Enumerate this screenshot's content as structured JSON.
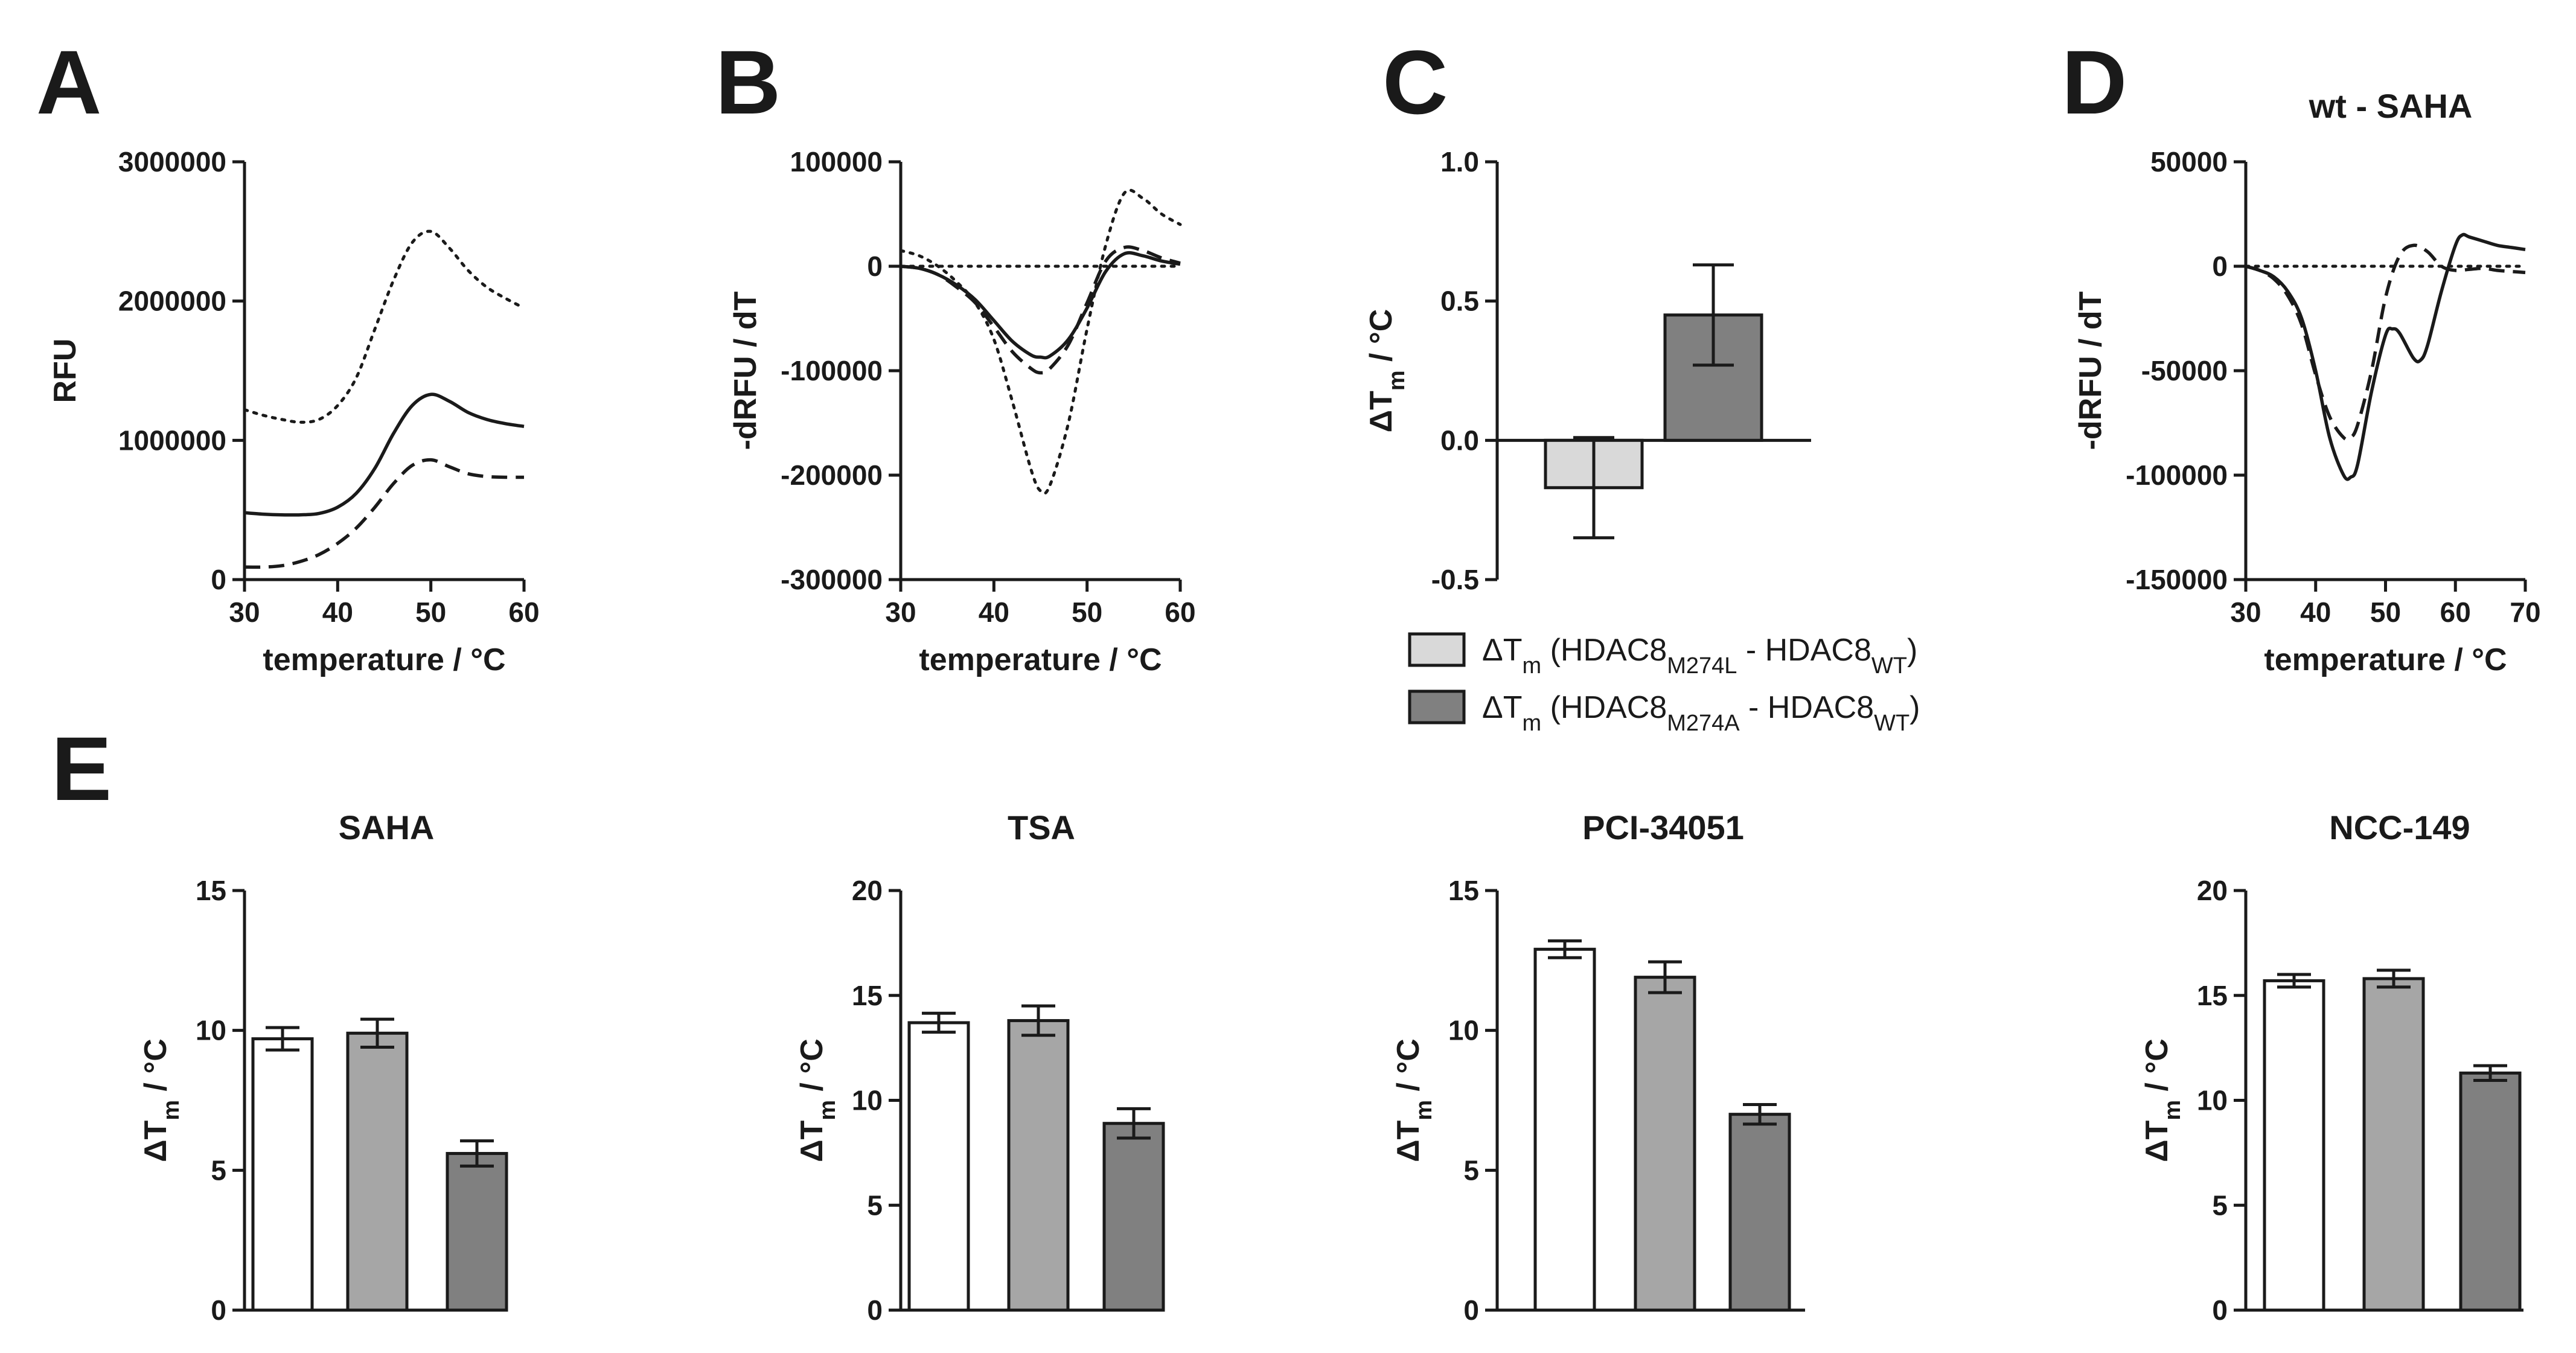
{
  "panels": {
    "A": "A",
    "B": "B",
    "C": "C",
    "D": "D",
    "E": "E"
  },
  "colors": {
    "axis": "#1a1a1a",
    "bar_light": "#d9d9d9",
    "bar_mid": "#a6a6a6",
    "bar_dark": "#808080",
    "bar_white": "#ffffff"
  },
  "chart_data": [
    {
      "id": "A",
      "type": "line",
      "xlabel": "temperature  / °C",
      "ylabel": "RFU",
      "xlim": [
        30,
        60
      ],
      "ylim": [
        0,
        3000000
      ],
      "xticks": [
        "30",
        "40",
        "50",
        "60"
      ],
      "yticks": [
        "0",
        "1000000",
        "2000000",
        "3000000"
      ],
      "series": [
        {
          "style": "dotted",
          "x": [
            30,
            32,
            34,
            36,
            38,
            40,
            42,
            44,
            46,
            48,
            50,
            52,
            54,
            56,
            58,
            60
          ],
          "y": [
            1220000,
            1180000,
            1150000,
            1130000,
            1150000,
            1250000,
            1450000,
            1800000,
            2150000,
            2420000,
            2500000,
            2380000,
            2220000,
            2100000,
            2020000,
            1950000
          ]
        },
        {
          "style": "solid",
          "x": [
            30,
            32,
            34,
            36,
            38,
            40,
            42,
            44,
            46,
            48,
            50,
            52,
            54,
            56,
            58,
            60
          ],
          "y": [
            480000,
            470000,
            465000,
            465000,
            475000,
            520000,
            620000,
            800000,
            1050000,
            1250000,
            1330000,
            1280000,
            1200000,
            1150000,
            1120000,
            1100000
          ]
        },
        {
          "style": "dashed",
          "x": [
            30,
            32,
            34,
            36,
            38,
            40,
            42,
            44,
            46,
            48,
            50,
            52,
            54,
            56,
            58,
            60
          ],
          "y": [
            90000,
            90000,
            100000,
            130000,
            180000,
            260000,
            370000,
            520000,
            690000,
            820000,
            860000,
            810000,
            760000,
            740000,
            735000,
            735000
          ]
        }
      ]
    },
    {
      "id": "B",
      "type": "line",
      "xlabel": "temperature / °C",
      "ylabel": "-dRFU / dT",
      "xlim": [
        30,
        60
      ],
      "ylim": [
        -300000,
        100000
      ],
      "xticks": [
        "30",
        "40",
        "50",
        "60"
      ],
      "yticks": [
        "-300000",
        "-200000",
        "-100000",
        "0",
        "100000"
      ],
      "series": [
        {
          "style": "dotted-ref",
          "x": [
            30,
            60
          ],
          "y": [
            0,
            0
          ]
        },
        {
          "style": "dotted",
          "x": [
            30,
            32,
            34,
            36,
            38,
            40,
            42,
            44,
            45,
            46,
            48,
            50,
            52,
            54,
            56,
            58,
            60
          ],
          "y": [
            15000,
            10000,
            0,
            -15000,
            -35000,
            -70000,
            -130000,
            -195000,
            -215000,
            -210000,
            -150000,
            -60000,
            20000,
            70000,
            65000,
            50000,
            40000
          ]
        },
        {
          "style": "solid",
          "x": [
            30,
            32,
            34,
            36,
            38,
            40,
            42,
            44,
            45,
            46,
            48,
            50,
            52,
            54,
            56,
            58,
            60
          ],
          "y": [
            0,
            -2000,
            -8000,
            -18000,
            -32000,
            -52000,
            -72000,
            -85000,
            -87000,
            -86000,
            -70000,
            -40000,
            -5000,
            12000,
            10000,
            5000,
            2000
          ]
        },
        {
          "style": "dashed",
          "x": [
            30,
            32,
            34,
            36,
            38,
            40,
            42,
            44,
            45,
            46,
            48,
            50,
            52,
            54,
            56,
            58,
            60
          ],
          "y": [
            0,
            -2000,
            -8000,
            -20000,
            -35000,
            -58000,
            -82000,
            -98000,
            -102000,
            -98000,
            -75000,
            -35000,
            5000,
            18000,
            15000,
            8000,
            3000
          ]
        }
      ]
    },
    {
      "id": "C",
      "type": "bar",
      "xlabel": "",
      "ylabel": "ΔTm / °C",
      "ylim": [
        -0.5,
        1.0
      ],
      "yticks": [
        "-0.5",
        "0.0",
        "0.5",
        "1.0"
      ],
      "bars": [
        {
          "value": -0.17,
          "error": 0.18,
          "fill": "#d9d9d9"
        },
        {
          "value": 0.45,
          "error": 0.18,
          "fill": "#808080"
        }
      ],
      "legend": [
        {
          "prefix": "ΔT",
          "psub": "m",
          "a": " (HDAC8",
          "asub": "M274L",
          "b": " - HDAC8",
          "bsub": "WT",
          "c": ")",
          "fill": "#d9d9d9"
        },
        {
          "prefix": "ΔT",
          "psub": "m",
          "a": " (HDAC8",
          "asub": "M274A",
          "b": " - HDAC8",
          "bsub": "WT",
          "c": ")",
          "fill": "#808080"
        }
      ]
    },
    {
      "id": "D",
      "type": "line",
      "title": "wt - SAHA",
      "xlabel": "temperature  / °C",
      "ylabel": "-dRFU / dT",
      "xlim": [
        30,
        70
      ],
      "ylim": [
        -150000,
        50000
      ],
      "xticks": [
        "30",
        "40",
        "50",
        "60",
        "70"
      ],
      "yticks": [
        "-150000",
        "-100000",
        "-50000",
        "0",
        "50000"
      ],
      "series": [
        {
          "style": "dotted-ref",
          "x": [
            30,
            70
          ],
          "y": [
            0,
            0
          ]
        },
        {
          "style": "solid",
          "x": [
            30,
            32,
            34,
            36,
            38,
            40,
            42,
            44,
            45,
            46,
            48,
            50,
            51,
            52,
            54,
            55,
            56,
            58,
            60,
            61,
            62,
            64,
            66,
            68,
            70
          ],
          "y": [
            0,
            -2000,
            -5000,
            -12000,
            -25000,
            -50000,
            -82000,
            -100000,
            -101000,
            -95000,
            -60000,
            -33000,
            -30000,
            -32000,
            -44000,
            -45000,
            -38000,
            -12000,
            10000,
            15000,
            14000,
            12000,
            10000,
            9000,
            8000
          ]
        },
        {
          "style": "dashed",
          "x": [
            30,
            32,
            34,
            36,
            38,
            40,
            42,
            44,
            45,
            46,
            48,
            50,
            52,
            54,
            56,
            58,
            60,
            62,
            64,
            66,
            68,
            70
          ],
          "y": [
            0,
            -2000,
            -6000,
            -14000,
            -28000,
            -52000,
            -72000,
            -82000,
            -82000,
            -76000,
            -50000,
            -15000,
            5000,
            10000,
            7000,
            0,
            -2000,
            -1500,
            -1000,
            -2000,
            -2500,
            -3000
          ]
        }
      ]
    },
    {
      "id": "E1",
      "type": "bar",
      "title": "SAHA",
      "ylabel": "ΔTm / °C",
      "ylim": [
        0,
        15
      ],
      "yticks": [
        "0",
        "5",
        "10",
        "15"
      ],
      "bars": [
        {
          "value": 9.7,
          "error": 0.4,
          "fill": "#ffffff"
        },
        {
          "value": 9.9,
          "error": 0.5,
          "fill": "#a6a6a6"
        },
        {
          "value": 5.6,
          "error": 0.45,
          "fill": "#808080"
        }
      ]
    },
    {
      "id": "E2",
      "type": "bar",
      "title": "TSA",
      "ylabel": "ΔTm / °C",
      "ylim": [
        0,
        20
      ],
      "yticks": [
        "0",
        "5",
        "10",
        "15",
        "20"
      ],
      "bars": [
        {
          "value": 13.7,
          "error": 0.45,
          "fill": "#ffffff"
        },
        {
          "value": 13.8,
          "error": 0.7,
          "fill": "#a6a6a6"
        },
        {
          "value": 8.9,
          "error": 0.7,
          "fill": "#808080"
        }
      ]
    },
    {
      "id": "E3",
      "type": "bar",
      "title": "PCI-34051",
      "ylabel": "ΔTm / °C",
      "ylim": [
        0,
        15
      ],
      "yticks": [
        "0",
        "5",
        "10",
        "15"
      ],
      "bars": [
        {
          "value": 12.9,
          "error": 0.3,
          "fill": "#ffffff"
        },
        {
          "value": 11.9,
          "error": 0.55,
          "fill": "#a6a6a6"
        },
        {
          "value": 7.0,
          "error": 0.35,
          "fill": "#808080"
        }
      ]
    },
    {
      "id": "E4",
      "type": "bar",
      "title": "NCC-149",
      "ylabel": "ΔTm / °C",
      "ylim": [
        0,
        20
      ],
      "yticks": [
        "0",
        "5",
        "10",
        "15",
        "20"
      ],
      "bars": [
        {
          "value": 15.7,
          "error": 0.3,
          "fill": "#ffffff"
        },
        {
          "value": 15.8,
          "error": 0.4,
          "fill": "#a6a6a6"
        },
        {
          "value": 11.3,
          "error": 0.35,
          "fill": "#808080"
        }
      ]
    }
  ]
}
